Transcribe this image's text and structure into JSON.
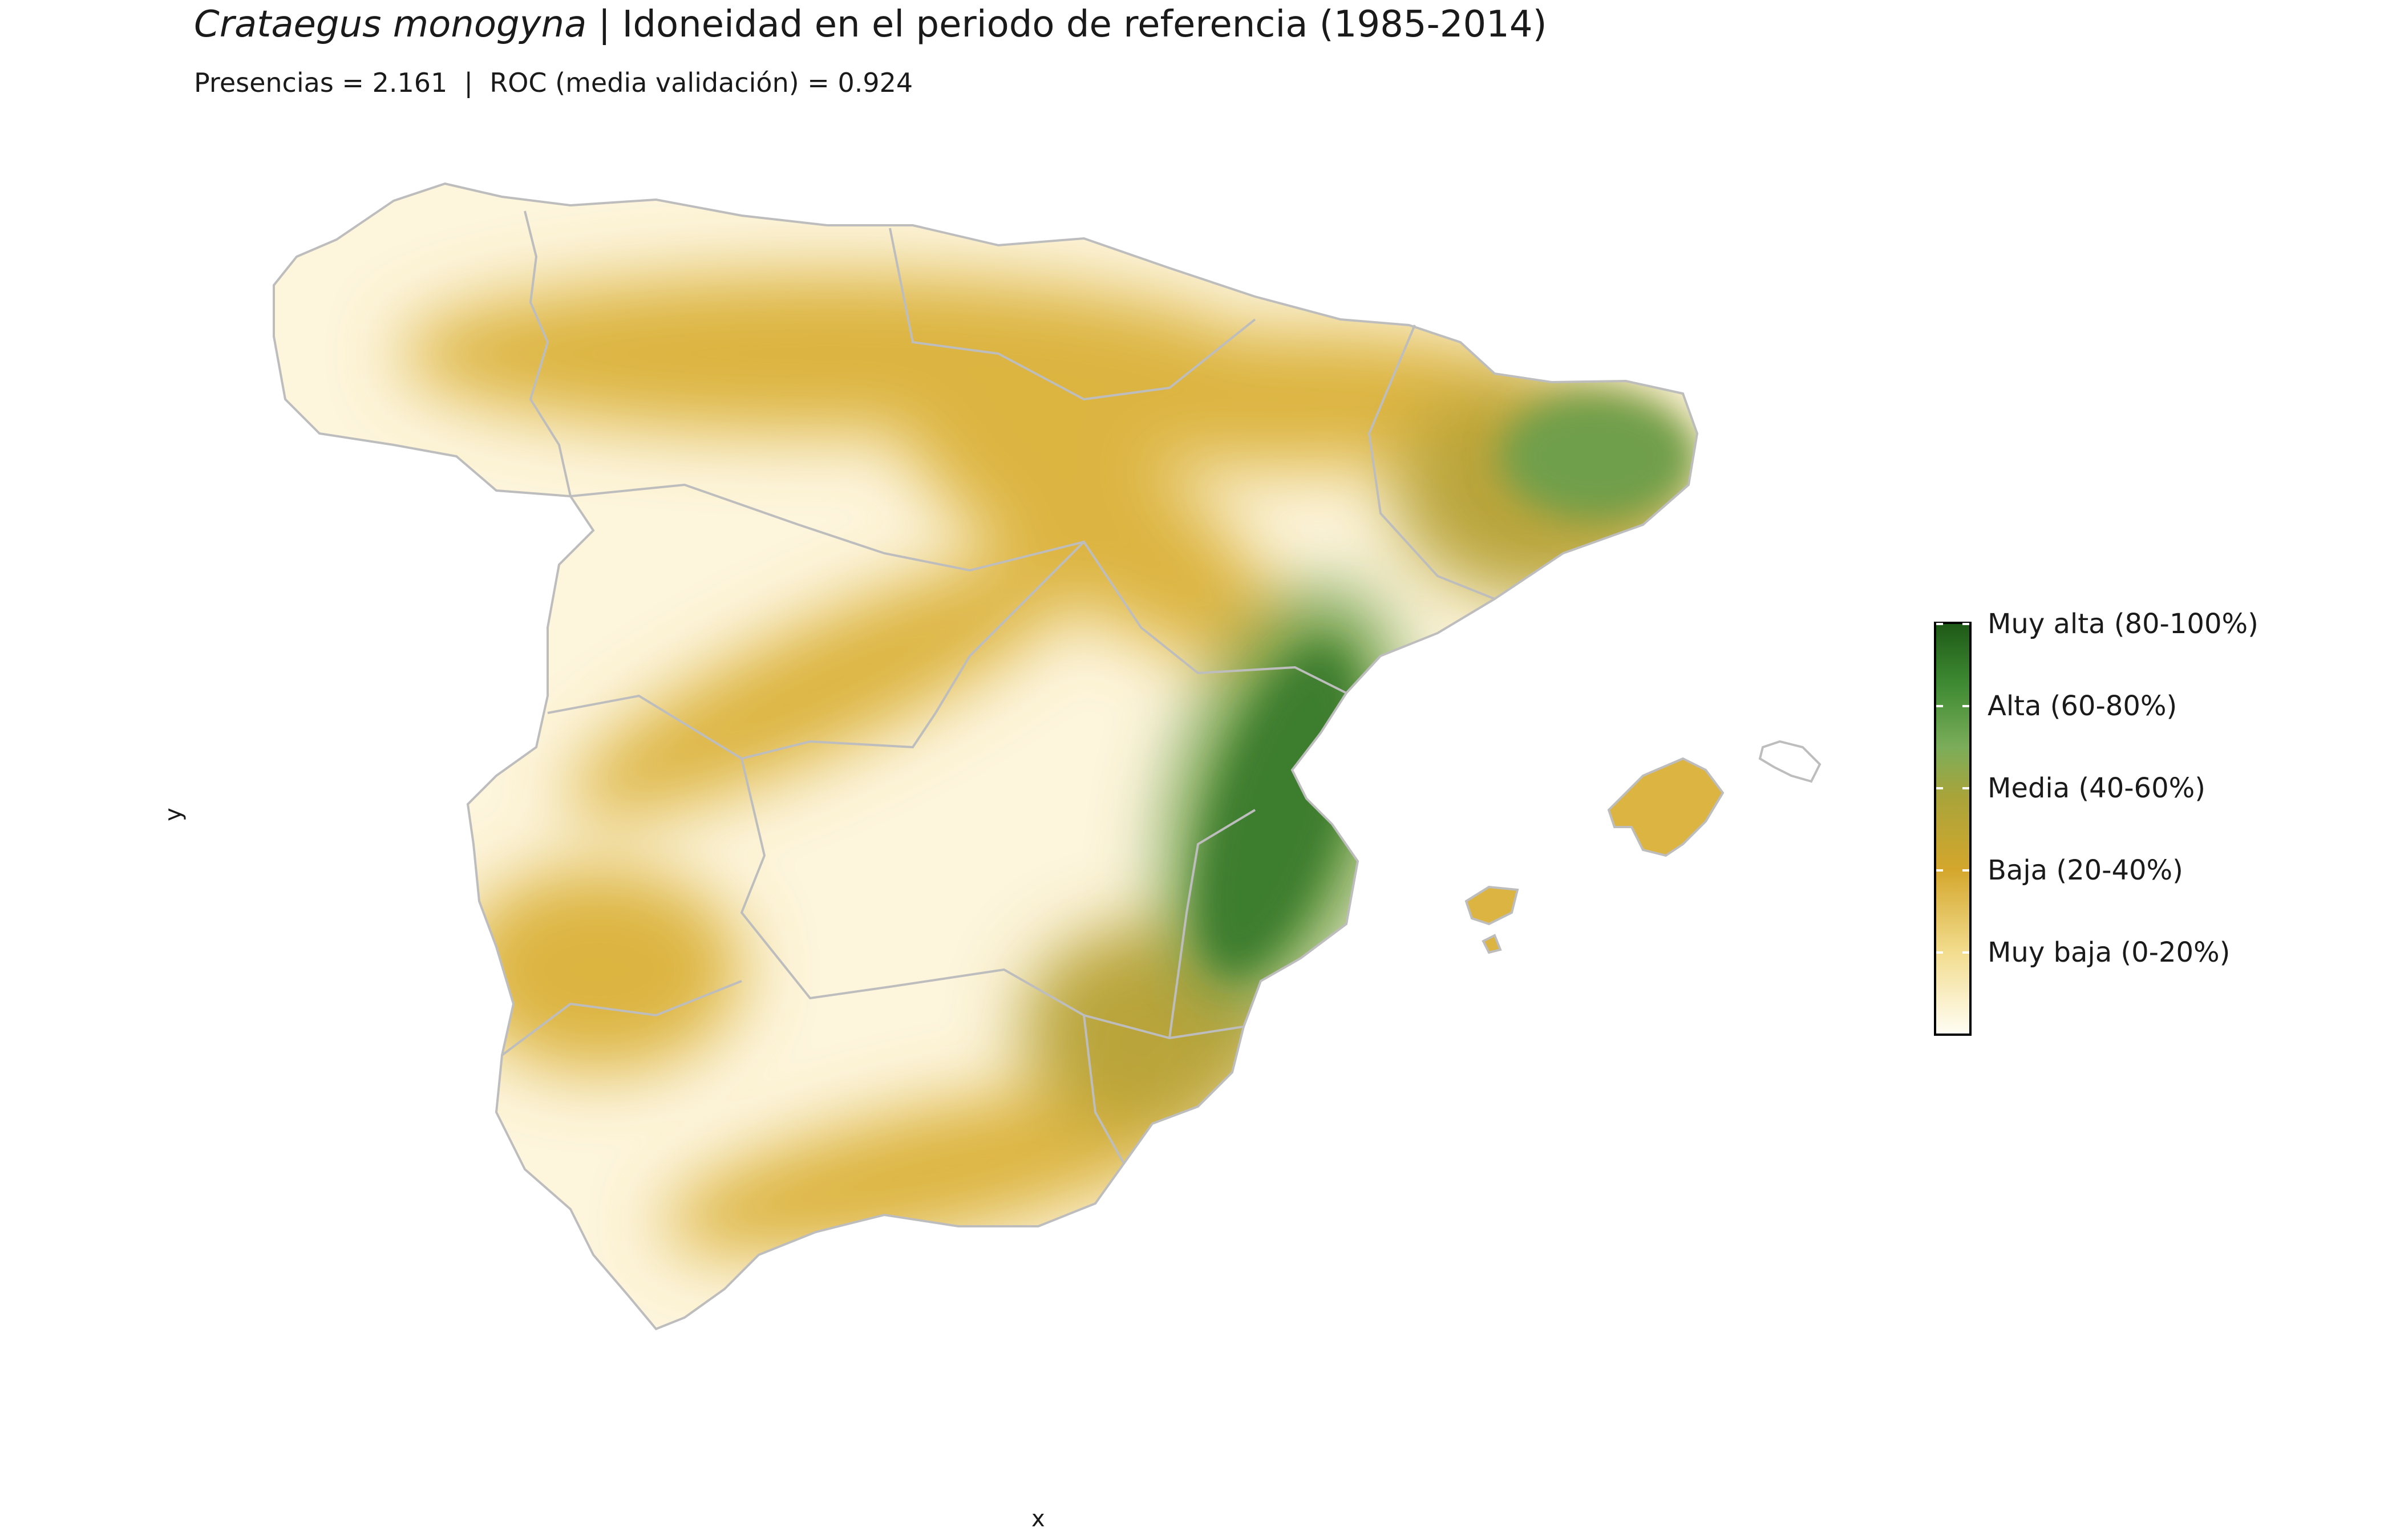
{
  "title": {
    "species": "Crataegus monogyna",
    "rest": " | Idoneidad en el periodo de referencia (1985-2014)"
  },
  "subtitle": "Presencias = 2.161  |  ROC (media validación) = 0.924",
  "axes": {
    "x_label": "x",
    "y_label": "y"
  },
  "legend": {
    "items": [
      {
        "label": "Muy alta (80-100%)",
        "color": "#1e5a17"
      },
      {
        "label": "Alta (60-80%)",
        "color": "#6aa553"
      },
      {
        "label": "Media (40-60%)",
        "color": "#a8a43a"
      },
      {
        "label": "Baja (20-40%)",
        "color": "#d4a72c"
      },
      {
        "label": "Muy baja (0-20%)",
        "color": "#f2dc8d"
      }
    ],
    "low_color": "#fffdf3"
  },
  "map_colors": {
    "border": "#bdbdbd",
    "very_low": "#fdf5dc",
    "low": "#efd78a",
    "low_mid": "#dcb441",
    "medium": "#b9a43a",
    "high": "#6f9f4c",
    "very_high": "#3d7d2e"
  }
}
